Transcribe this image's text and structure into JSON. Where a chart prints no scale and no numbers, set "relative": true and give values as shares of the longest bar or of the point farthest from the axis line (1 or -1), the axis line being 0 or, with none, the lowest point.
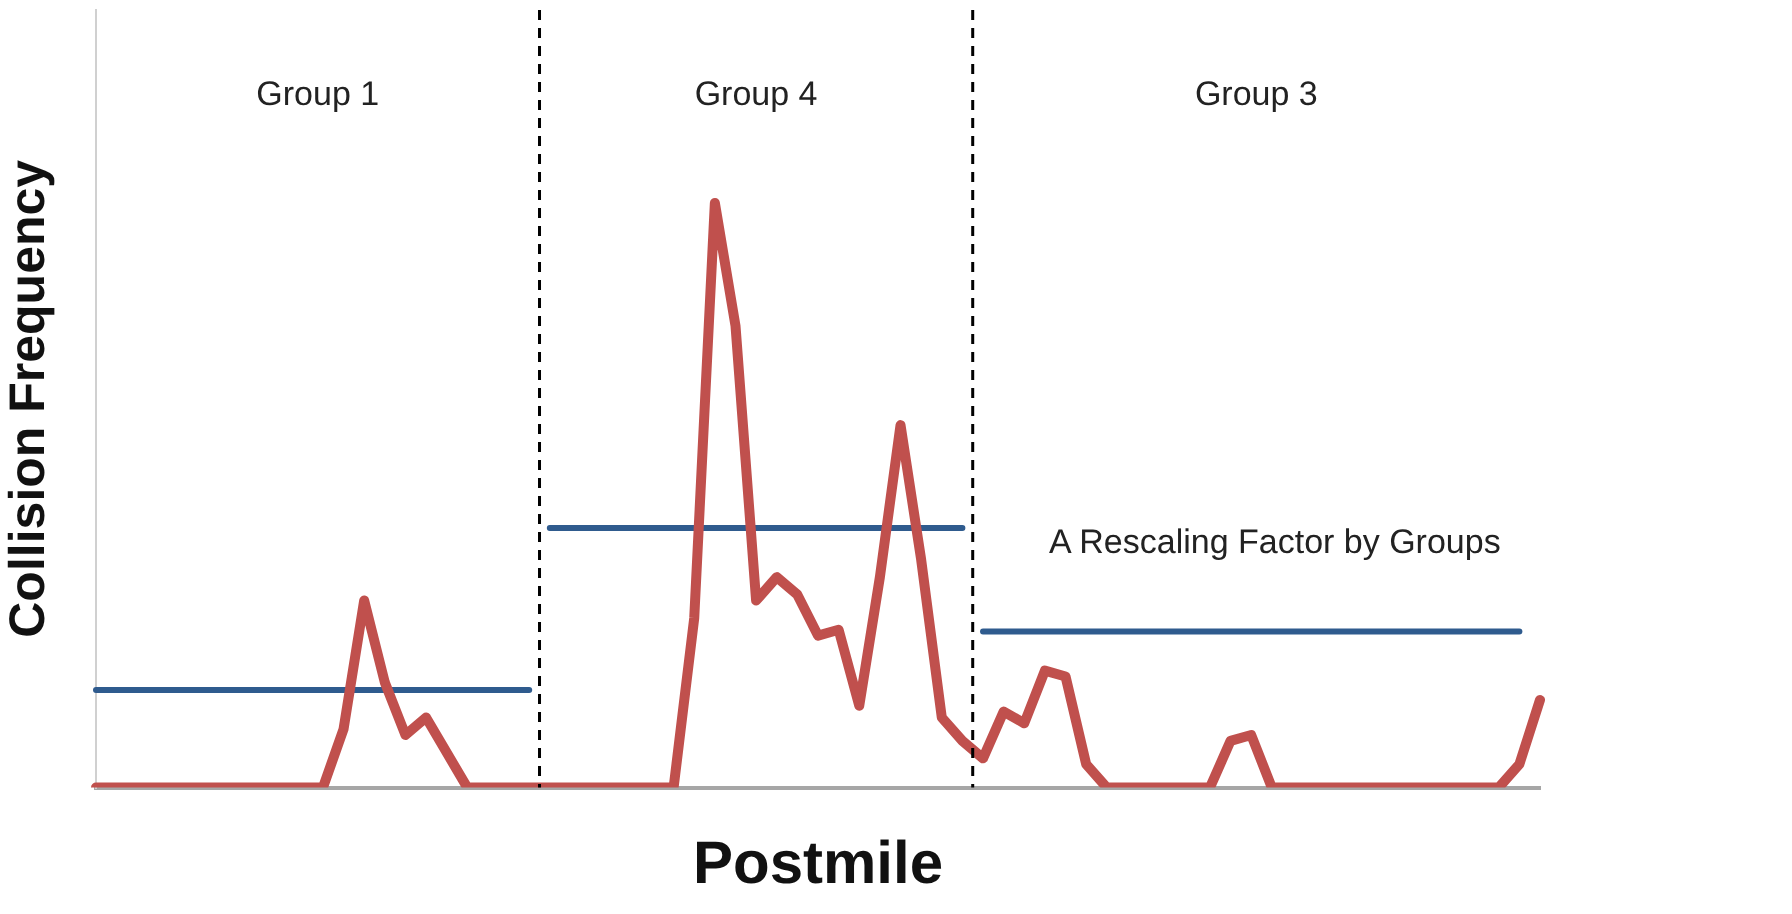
{
  "chart_data": {
    "type": "line",
    "relative": true,
    "xlabel": "Postmile",
    "ylabel": "Collision Frequency",
    "legend": false,
    "marker": "none",
    "line_style": "solid",
    "categories": [
      null,
      null,
      null,
      null,
      null,
      null,
      null,
      null,
      null,
      null,
      null,
      null,
      null,
      null,
      null,
      null,
      null,
      null,
      null,
      null,
      null,
      null,
      null,
      null,
      null,
      null,
      null,
      null,
      null,
      null,
      null,
      null,
      null,
      null,
      null,
      null,
      null,
      null,
      null,
      null,
      null,
      null,
      null,
      null,
      null,
      null,
      null,
      null,
      null,
      null,
      null,
      null,
      null,
      null,
      null,
      null,
      null,
      null,
      null,
      null,
      null,
      null,
      null,
      null,
      null,
      null,
      null,
      null,
      null,
      null,
      null
    ],
    "series": [
      {
        "color": "#c0504d",
        "values": [
          0,
          0,
          0,
          0,
          0,
          0,
          0,
          0,
          0,
          0,
          0,
          0,
          0.1,
          0.32,
          0.18,
          0.09,
          0.12,
          0.06,
          0,
          0,
          0,
          0,
          0,
          0,
          0,
          0,
          0,
          0,
          0,
          0.29,
          1,
          0.79,
          0.32,
          0.36,
          0.33,
          0.26,
          0.27,
          0.14,
          0.36,
          0.62,
          0.39,
          0.12,
          0.08,
          0.05,
          0.13,
          0.11,
          0.2,
          0.19,
          0.04,
          0,
          0,
          0,
          0,
          0,
          0,
          0.08,
          0.09,
          0,
          0,
          0,
          0,
          0,
          0,
          0,
          0,
          0,
          0,
          0,
          0,
          0.04,
          0.15
        ]
      },
      {
        "color": "#2f5b8e",
        "values": [
          0.167,
          0.167,
          0.167,
          0.167,
          0.167,
          0.167,
          0.167,
          0.167,
          0.167,
          0.167,
          0.167,
          0.167,
          0.167,
          0.167,
          0.167,
          0.167,
          0.167,
          0.167,
          0.167,
          0.167,
          0.167,
          0.167,
          null,
          null,
          null,
          null,
          null,
          null,
          null,
          null,
          null,
          null,
          null,
          null,
          null,
          null,
          null,
          null,
          null,
          null,
          null,
          null,
          null,
          null,
          null,
          null,
          null,
          null,
          null,
          null,
          null,
          null,
          null,
          null,
          null,
          null,
          null,
          null,
          null,
          null,
          null,
          null,
          null,
          null,
          null,
          null,
          null,
          null,
          null,
          null,
          null
        ]
      },
      {
        "color": "#2f5b8e",
        "values": [
          null,
          null,
          null,
          null,
          null,
          null,
          null,
          null,
          null,
          null,
          null,
          null,
          null,
          null,
          null,
          null,
          null,
          null,
          null,
          null,
          null,
          null,
          0.444,
          0.444,
          0.444,
          0.444,
          0.444,
          0.444,
          0.444,
          0.444,
          0.444,
          0.444,
          0.444,
          0.444,
          0.444,
          0.444,
          0.444,
          0.444,
          0.444,
          0.444,
          0.444,
          0.444,
          0.444,
          null,
          null,
          null,
          null,
          null,
          null,
          null,
          null,
          null,
          null,
          null,
          null,
          null,
          null,
          null,
          null,
          null,
          null,
          null,
          null,
          null,
          null,
          null,
          null,
          null,
          null,
          null,
          null
        ]
      },
      {
        "color": "#2f5b8e",
        "values": [
          null,
          null,
          null,
          null,
          null,
          null,
          null,
          null,
          null,
          null,
          null,
          null,
          null,
          null,
          null,
          null,
          null,
          null,
          null,
          null,
          null,
          null,
          null,
          null,
          null,
          null,
          null,
          null,
          null,
          null,
          null,
          null,
          null,
          null,
          null,
          null,
          null,
          null,
          null,
          null,
          null,
          null,
          null,
          0.267,
          0.267,
          0.267,
          0.267,
          0.267,
          0.267,
          0.267,
          0.267,
          0.267,
          0.267,
          0.267,
          0.267,
          0.267,
          0.267,
          0.267,
          0.267,
          0.267,
          0.267,
          0.267,
          0.267,
          0.267,
          0.267,
          0.267,
          0.267,
          0.267,
          0.267,
          0.267,
          null
        ]
      }
    ],
    "annotations": [
      "Group 1",
      "Group 4",
      "Group 3",
      "A Rescaling Factor by Groups"
    ]
  }
}
